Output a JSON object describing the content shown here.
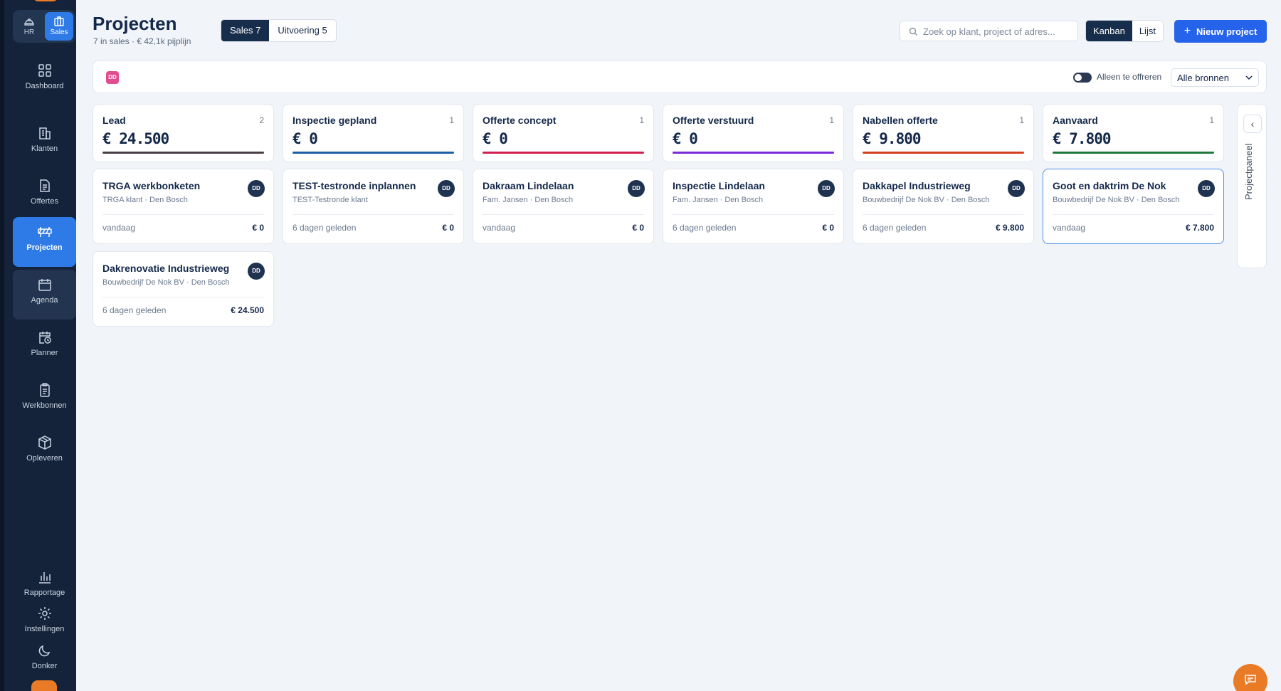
{
  "sidebar": {
    "modes": [
      {
        "label": "HR",
        "icon": "helmet-icon"
      },
      {
        "label": "Sales",
        "icon": "briefcase-icon"
      }
    ],
    "items": [
      {
        "label": "Dashboard",
        "icon": "grid-icon"
      },
      {
        "label": "Klanten",
        "icon": "building-icon"
      },
      {
        "label": "Offertes",
        "icon": "document-icon"
      },
      {
        "label": "Projecten",
        "icon": "barrier-icon"
      },
      {
        "label": "Agenda",
        "icon": "calendar-icon"
      },
      {
        "label": "Planner",
        "icon": "calendar-clock-icon"
      },
      {
        "label": "Werkbonnen",
        "icon": "clipboard-icon"
      },
      {
        "label": "Opleveren",
        "icon": "package-icon"
      }
    ],
    "bottom_items": [
      {
        "label": "Rapportage",
        "icon": "bar-chart-icon"
      },
      {
        "label": "Instellingen",
        "icon": "gear-icon"
      },
      {
        "label": "Donker",
        "icon": "moon-icon"
      }
    ]
  },
  "header": {
    "title": "Projecten",
    "subtitle": "7 in sales · € 42,1k pijplijn",
    "tabs": [
      {
        "label": "Sales 7",
        "active": true
      },
      {
        "label": "Uitvoering 5",
        "active": false
      }
    ],
    "search_placeholder": "Zoek op klant, project of adres...",
    "views": [
      {
        "label": "Kanban",
        "active": true
      },
      {
        "label": "Lijst",
        "active": false
      }
    ],
    "new_button": "Nieuw project"
  },
  "filters": {
    "user_initials": "DD",
    "toggle_label": "Alleen te offreren",
    "source": "Alle bronnen"
  },
  "columns": [
    {
      "name": "Lead",
      "count": "2",
      "total": "€ 24.500",
      "color": "#4a3f47"
    },
    {
      "name": "Inspectie gepland",
      "count": "1",
      "total": "€ 0",
      "color": "#1c5fa8"
    },
    {
      "name": "Offerte concept",
      "count": "1",
      "total": "€ 0",
      "color": "#d12050"
    },
    {
      "name": "Offerte verstuurd",
      "count": "1",
      "total": "€ 0",
      "color": "#7a2ad6"
    },
    {
      "name": "Nabellen offerte",
      "count": "1",
      "total": "€ 9.800",
      "color": "#d0401a"
    },
    {
      "name": "Aanvaard",
      "count": "1",
      "total": "€ 7.800",
      "color": "#1d7a3c"
    }
  ],
  "cards": [
    {
      "title": "TRGA werkbonketen",
      "sub": "TRGA klant · Den Bosch",
      "when": "vandaag",
      "amount": "€ 0",
      "initials": "DD"
    },
    {
      "title": "TEST-testronde inplannen",
      "sub": "TEST-Testronde klant",
      "when": "6 dagen geleden",
      "amount": "€ 0",
      "initials": "DD"
    },
    {
      "title": "Dakraam Lindelaan",
      "sub": "Fam. Jansen · Den Bosch",
      "when": "vandaag",
      "amount": "€ 0",
      "initials": "DD"
    },
    {
      "title": "Inspectie Lindelaan",
      "sub": "Fam. Jansen · Den Bosch",
      "when": "6 dagen geleden",
      "amount": "€ 0",
      "initials": "DD"
    },
    {
      "title": "Dakkapel Industrieweg",
      "sub": "Bouwbedrijf De Nok BV · Den Bosch",
      "when": "6 dagen geleden",
      "amount": "€ 9.800",
      "initials": "DD"
    },
    {
      "title": "Goot en daktrim De Nok",
      "sub": "Bouwbedrijf De Nok BV · Den Bosch",
      "when": "vandaag",
      "amount": "€ 7.800",
      "initials": "DD"
    },
    {
      "title": "Dakrenovatie Industrieweg",
      "sub": "Bouwbedrijf De Nok BV · Den Bosch",
      "when": "6 dagen geleden",
      "amount": "€ 24.500",
      "initials": "DD"
    }
  ],
  "panel": {
    "label": "Projectpaneel",
    "collapse_glyph": "‹"
  }
}
